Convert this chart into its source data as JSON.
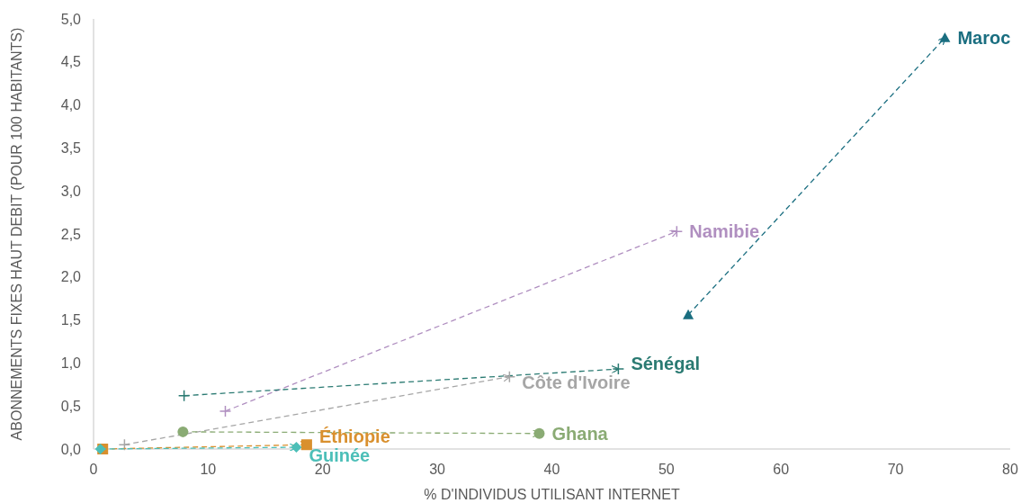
{
  "chart_data": {
    "type": "line",
    "xlabel": "% D'INDIVIDUS UTILISANT INTERNET",
    "ylabel": "ABONNEMENTS FIXES HAUT DEBIT (POUR 100 HABITANTS)",
    "xlim": [
      0,
      80
    ],
    "xticks": [
      0,
      10,
      20,
      30,
      40,
      50,
      60,
      70,
      80
    ],
    "ylim": [
      0,
      5
    ],
    "yticks": [
      {
        "value": 0,
        "label": "0,0"
      },
      {
        "value": 0.5,
        "label": "0,5"
      },
      {
        "value": 1,
        "label": "1,0"
      },
      {
        "value": 1.5,
        "label": "1,5"
      },
      {
        "value": 2,
        "label": "2,0"
      },
      {
        "value": 2.5,
        "label": "2,5"
      },
      {
        "value": 3,
        "label": "3,0"
      },
      {
        "value": 3.5,
        "label": "3,5"
      },
      {
        "value": 4,
        "label": "4,0"
      },
      {
        "value": 4.5,
        "label": "4,5"
      },
      {
        "value": 5,
        "label": "5,0"
      }
    ],
    "grid": false,
    "line_style": "dashed",
    "series": [
      {
        "name": "Maroc",
        "color": "#1a6e80",
        "marker": "triangle",
        "x": [
          51.9,
          74.3
        ],
        "values": [
          1.56,
          4.78
        ]
      },
      {
        "name": "Namibie",
        "color": "#b08fc0",
        "marker": "cross",
        "x": [
          11.5,
          50.9
        ],
        "values": [
          0.44,
          2.53
        ]
      },
      {
        "name": "Sénégal",
        "color": "#2a7a72",
        "marker": "cross",
        "x": [
          7.9,
          45.8
        ],
        "values": [
          0.62,
          0.93
        ]
      },
      {
        "name": "Côte d'Ivoire",
        "color": "#a6a6a6",
        "marker": "cross",
        "x": [
          2.7,
          36.3
        ],
        "values": [
          0.05,
          0.84
        ]
      },
      {
        "name": "Ghana",
        "color": "#8aab74",
        "marker": "circle",
        "x": [
          7.8,
          38.9
        ],
        "values": [
          0.2,
          0.18
        ]
      },
      {
        "name": "Éthiopie",
        "color": "#d9902e",
        "marker": "square",
        "x": [
          0.8,
          18.6
        ],
        "values": [
          0.0,
          0.05
        ]
      },
      {
        "name": "Guinée",
        "color": "#4cbfb8",
        "marker": "diamond",
        "x": [
          0.6,
          17.7
        ],
        "values": [
          0.0,
          0.02
        ]
      }
    ]
  }
}
